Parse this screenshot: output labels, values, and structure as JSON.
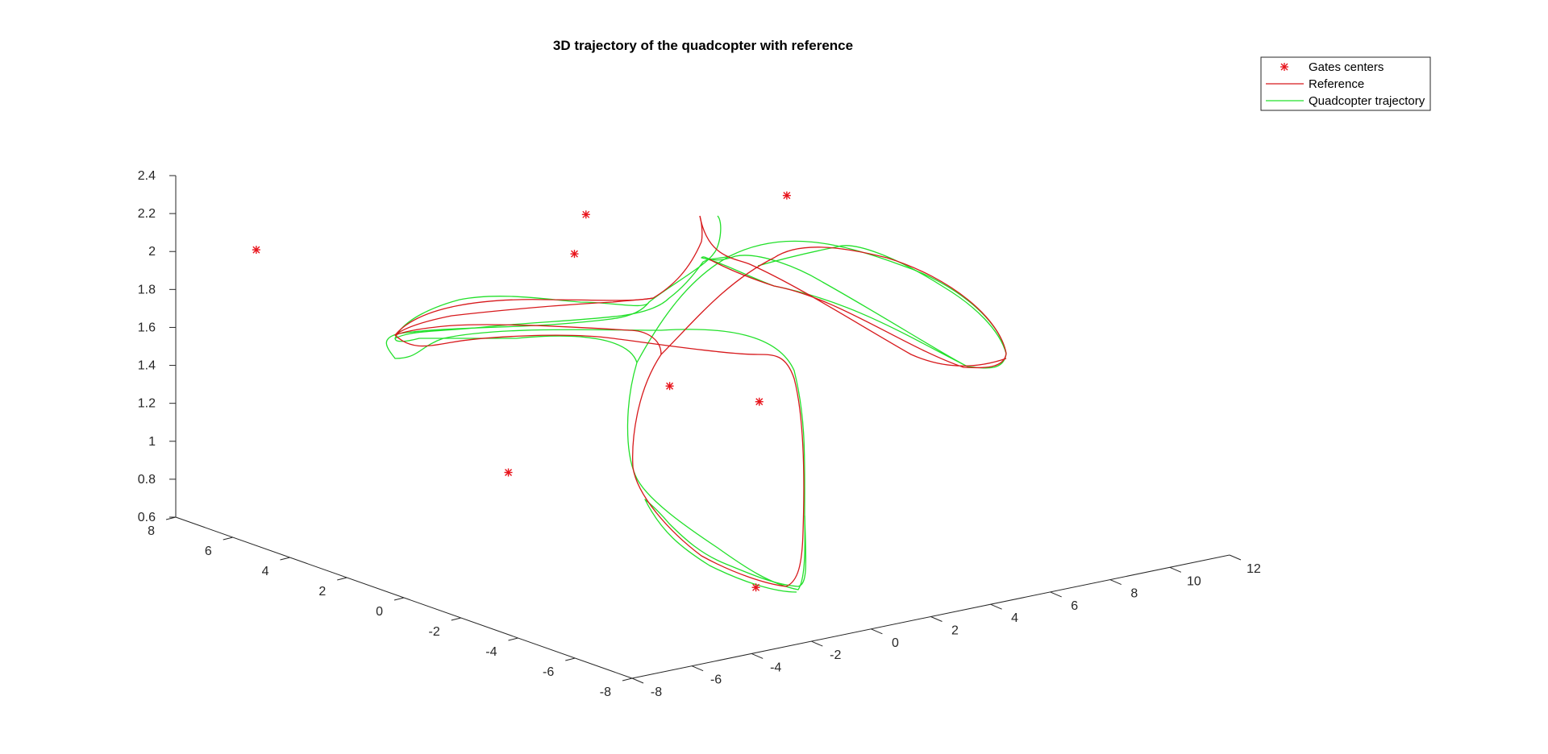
{
  "chart_data": {
    "type": "line",
    "projection": "3d",
    "title": "3D trajectory of the quadcopter with reference",
    "xlabel": "",
    "ylabel": "",
    "zlabel": "",
    "xlim": [
      -8,
      12
    ],
    "ylim": [
      -8,
      8
    ],
    "zlim": [
      0.6,
      2.4
    ],
    "x_ticks": [
      "-8",
      "-6",
      "-4",
      "-2",
      "0",
      "2",
      "4",
      "6",
      "8",
      "10",
      "12"
    ],
    "y_ticks": [
      "-8",
      "-6",
      "-4",
      "-2",
      "0",
      "2",
      "4",
      "6",
      "8"
    ],
    "z_ticks": [
      "0.6",
      "0.8",
      "1",
      "1.2",
      "1.4",
      "1.6",
      "1.8",
      "2",
      "2.2",
      "2.4"
    ],
    "grid": false,
    "legend_position": "top-right",
    "legend": [
      "Gates centers",
      "Reference",
      "Quadcopter trajectory"
    ],
    "colors": {
      "gates": "#e8141c",
      "reference": "#d7191c",
      "trajectory": "#22e02a"
    },
    "gates_centers": [
      {
        "x": -2.9,
        "y": -7.0,
        "z": 0.86
      },
      {
        "x": -6.7,
        "y": -2.3,
        "z": 1.34
      },
      {
        "x": -1.3,
        "y": -2.3,
        "z": 1.62
      },
      {
        "x": 1.7,
        "y": -2.3,
        "z": 1.44
      },
      {
        "x": 2.1,
        "y": 4.6,
        "z": 1.84
      },
      {
        "x": 2.2,
        "y": 4.3,
        "z": 2.06
      },
      {
        "x": -5.4,
        "y": 7.9,
        "z": 1.93
      },
      {
        "x": 9.4,
        "y": 4.8,
        "z": 1.9
      }
    ]
  }
}
